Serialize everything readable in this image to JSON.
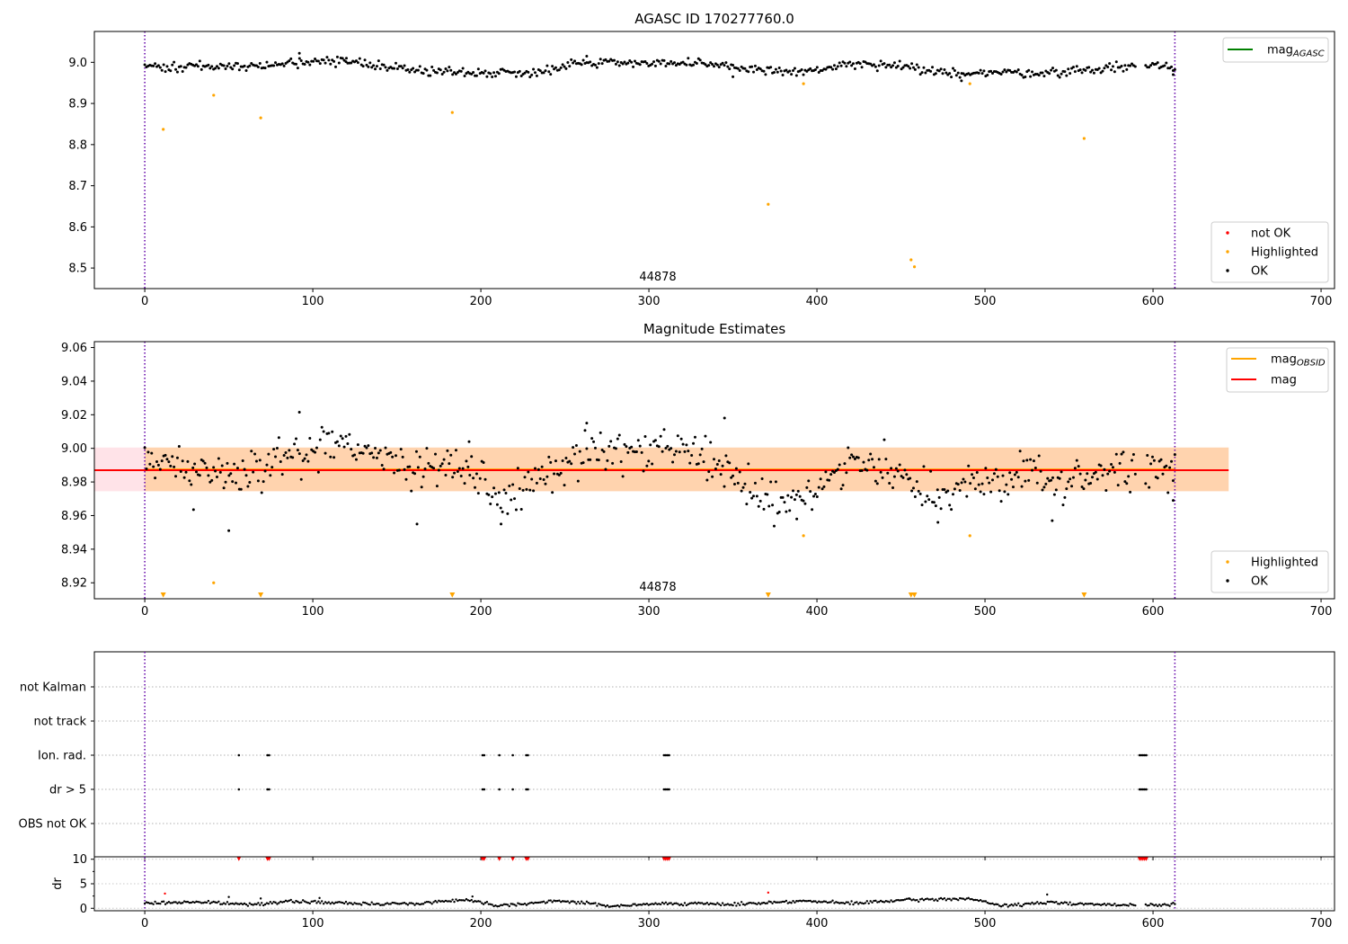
{
  "chart_data": [
    {
      "type": "scatter",
      "title": "AGASC ID 170277760.0",
      "xlabel": "",
      "ylabel": "",
      "xlim": [
        -30,
        708
      ],
      "ylim": [
        8.45,
        9.075
      ],
      "xticks": [
        0,
        100,
        200,
        300,
        400,
        500,
        600,
        700
      ],
      "yticks": [
        8.5,
        8.6,
        8.7,
        8.8,
        8.9,
        9.0
      ],
      "vlines": [
        0,
        613
      ],
      "annotation": {
        "text": "44878",
        "x": 305,
        "y": 8.47
      },
      "series": [
        {
          "name": "mag_AGASC",
          "kind": "line",
          "color": "#008000"
        },
        {
          "name": "not OK",
          "kind": "points",
          "color": "#ff0000",
          "x": [],
          "y": []
        },
        {
          "name": "Highlighted",
          "kind": "points",
          "color": "#ffa500",
          "x": [
            11,
            41,
            69,
            183,
            371,
            392,
            456,
            458,
            491,
            559
          ],
          "y": [
            8.837,
            8.92,
            8.865,
            8.878,
            8.655,
            8.948,
            8.52,
            8.503,
            8.948,
            8.815
          ]
        },
        {
          "name": "OK",
          "kind": "points",
          "color": "#000000",
          "trend": [
            [
              0,
              8.99
            ],
            [
              30,
              8.99
            ],
            [
              60,
              8.99
            ],
            [
              100,
              9.0
            ],
            [
              130,
              9.0
            ],
            [
              160,
              8.98
            ],
            [
              200,
              8.975
            ],
            [
              230,
              8.975
            ],
            [
              260,
              9.0
            ],
            [
              300,
              9.0
            ],
            [
              330,
              8.995
            ],
            [
              360,
              8.985
            ],
            [
              390,
              8.975
            ],
            [
              420,
              8.995
            ],
            [
              450,
              8.99
            ],
            [
              470,
              8.975
            ],
            [
              500,
              8.975
            ],
            [
              540,
              8.975
            ],
            [
              570,
              8.985
            ],
            [
              600,
              8.995
            ],
            [
              613,
              8.985
            ]
          ],
          "spread": 0.011,
          "count": 600,
          "gaps": [
            [
              590,
              595
            ]
          ],
          "outliers": [
            [
              92,
              9.022
            ],
            [
              120,
              9.01
            ],
            [
              263,
              9.015
            ],
            [
              350,
              8.965
            ],
            [
              486,
              8.955
            ],
            [
              612,
              8.97
            ]
          ]
        }
      ],
      "legends": [
        {
          "position": "top-right",
          "entries": [
            {
              "label": "mag",
              "sub": "AGASC",
              "color": "#008000",
              "kind": "line"
            }
          ]
        },
        {
          "position": "bottom-right",
          "entries": [
            {
              "label": "not OK",
              "color": "#ff0000",
              "kind": "point"
            },
            {
              "label": "Highlighted",
              "color": "#ffa500",
              "kind": "point"
            },
            {
              "label": "OK",
              "color": "#000000",
              "kind": "point"
            }
          ]
        }
      ]
    },
    {
      "type": "scatter",
      "title": "Magnitude Estimates",
      "xlabel": "",
      "ylabel": "",
      "xlim": [
        -30,
        708
      ],
      "ylim": [
        8.9105,
        9.0635
      ],
      "xticks": [
        0,
        100,
        200,
        300,
        400,
        500,
        600,
        700
      ],
      "yticks": [
        8.92,
        8.94,
        8.96,
        8.98,
        9.0,
        9.02,
        9.04,
        9.06
      ],
      "vlines": [
        0,
        613
      ],
      "bands": [
        {
          "x": [
            -30,
            645
          ],
          "y": [
            8.9745,
            9.0005
          ],
          "color": "#ffc0cb",
          "opacity": 0.45
        },
        {
          "x": [
            0,
            645
          ],
          "y": [
            8.9745,
            9.0005
          ],
          "color": "#ffa500",
          "opacity": 0.25
        }
      ],
      "lines": [
        {
          "name": "mag_OBSID",
          "y": 8.9875,
          "x": [
            0,
            613
          ],
          "color": "#ffa500"
        },
        {
          "name": "mag",
          "y": 8.987,
          "x": [
            -30,
            645
          ],
          "color": "#ff0000"
        }
      ],
      "annotation": {
        "text": "44878",
        "x": 305,
        "y": 8.9155
      },
      "series": [
        {
          "name": "Highlighted",
          "kind": "points",
          "color": "#ffa500",
          "x": [
            41,
            392,
            491
          ],
          "y": [
            8.92,
            8.948,
            8.948
          ]
        },
        {
          "name": "Highlighted (below range)",
          "kind": "triangles",
          "color": "#ffa500",
          "x": [
            11,
            69,
            183,
            371,
            456,
            458,
            559
          ]
        },
        {
          "name": "OK",
          "kind": "points",
          "color": "#000000",
          "trend": [
            [
              0,
              8.992
            ],
            [
              20,
              8.99
            ],
            [
              40,
              8.985
            ],
            [
              60,
              8.985
            ],
            [
              80,
              8.992
            ],
            [
              100,
              9.0
            ],
            [
              120,
              9.0
            ],
            [
              140,
              8.995
            ],
            [
              160,
              8.985
            ],
            [
              180,
              8.99
            ],
            [
              200,
              8.98
            ],
            [
              215,
              8.968
            ],
            [
              230,
              8.98
            ],
            [
              250,
              8.99
            ],
            [
              270,
              9.0
            ],
            [
              300,
              8.998
            ],
            [
              320,
              9.0
            ],
            [
              340,
              8.99
            ],
            [
              360,
              8.975
            ],
            [
              380,
              8.968
            ],
            [
              400,
              8.975
            ],
            [
              420,
              8.995
            ],
            [
              440,
              8.99
            ],
            [
              460,
              8.975
            ],
            [
              470,
              8.97
            ],
            [
              490,
              8.98
            ],
            [
              510,
              8.978
            ],
            [
              530,
              8.985
            ],
            [
              545,
              8.975
            ],
            [
              560,
              8.985
            ],
            [
              580,
              8.99
            ],
            [
              600,
              8.99
            ],
            [
              613,
              8.985
            ]
          ],
          "spread": 0.012,
          "count": 600,
          "gaps": [
            [
              590,
              595
            ]
          ],
          "outliers": [
            [
              29,
              8.9635
            ],
            [
              50,
              8.951
            ],
            [
              92,
              9.0215
            ],
            [
              162,
              8.955
            ],
            [
              193,
              9.004
            ],
            [
              212,
              8.955
            ],
            [
              263,
              9.015
            ],
            [
              345,
              9.018
            ],
            [
              388,
              8.958
            ],
            [
              472,
              8.956
            ],
            [
              540,
              8.957
            ],
            [
              612,
              8.969
            ]
          ]
        }
      ],
      "legends": [
        {
          "position": "top-right",
          "entries": [
            {
              "label": "mag",
              "sub": "OBSID",
              "color": "#ffa500",
              "kind": "line"
            },
            {
              "label": "mag",
              "color": "#ff0000",
              "kind": "line"
            }
          ]
        },
        {
          "position": "bottom-right",
          "entries": [
            {
              "label": "Highlighted",
              "color": "#ffa500",
              "kind": "point"
            },
            {
              "label": "OK",
              "color": "#000000",
              "kind": "point"
            }
          ]
        }
      ]
    },
    {
      "type": "scatter",
      "title": "",
      "xlabel": "",
      "ylabel": "",
      "xlim": [
        -30,
        708
      ],
      "categories": [
        "not Kalman",
        "not track",
        "Ion. rad.",
        "dr > 5",
        "OBS not OK"
      ],
      "vlines": [
        0,
        613
      ],
      "flags": [
        {
          "category": "Ion. rad.",
          "x": [
            56,
            73,
            74,
            201,
            202,
            211,
            219,
            227,
            228,
            309,
            310,
            311,
            312,
            592,
            593,
            594,
            595,
            596
          ]
        },
        {
          "category": "dr > 5",
          "x": [
            56,
            73,
            74,
            201,
            202,
            211,
            219,
            227,
            228,
            309,
            310,
            311,
            312,
            592,
            593,
            594,
            595,
            596
          ]
        }
      ]
    },
    {
      "type": "scatter",
      "title": "",
      "xlabel": "",
      "ylabel": "dr",
      "xlim": [
        -30,
        708
      ],
      "ylim": [
        -0.5,
        10.5
      ],
      "xticks": [
        0,
        100,
        200,
        300,
        400,
        500,
        600,
        700
      ],
      "yticks": [
        0,
        5,
        10
      ],
      "vlines": [
        0,
        613
      ],
      "series": [
        {
          "name": "not OK",
          "kind": "triangles",
          "color": "#ff0000",
          "x": [
            56,
            73,
            74,
            201,
            202,
            211,
            219,
            227,
            228,
            309,
            310,
            311,
            312,
            592,
            593,
            594,
            595,
            596
          ],
          "y": 10
        },
        {
          "name": "not OK (dr)",
          "kind": "points",
          "color": "#ff0000",
          "x": [
            12,
            371
          ],
          "y": [
            3.0,
            3.2
          ]
        },
        {
          "name": "OK",
          "kind": "points",
          "color": "#000000",
          "trend": [
            [
              0,
              1.0
            ],
            [
              30,
              1.3
            ],
            [
              60,
              0.8
            ],
            [
              90,
              1.4
            ],
            [
              120,
              1.0
            ],
            [
              160,
              0.9
            ],
            [
              190,
              1.8
            ],
            [
              210,
              0.6
            ],
            [
              250,
              1.5
            ],
            [
              280,
              0.4
            ],
            [
              310,
              1.0
            ],
            [
              350,
              0.8
            ],
            [
              390,
              1.5
            ],
            [
              420,
              1.0
            ],
            [
              450,
              1.6
            ],
            [
              490,
              2.0
            ],
            [
              510,
              0.5
            ],
            [
              540,
              1.2
            ],
            [
              580,
              0.6
            ],
            [
              613,
              0.8
            ]
          ],
          "spread": 0.3,
          "count": 600,
          "gaps": [
            [
              590,
              595
            ]
          ],
          "outliers": [
            [
              50,
              2.3
            ],
            [
              69,
              2.0
            ],
            [
              104,
              2.1
            ],
            [
              195,
              2.4
            ],
            [
              455,
              2.0
            ],
            [
              537,
              2.8
            ]
          ]
        }
      ]
    }
  ]
}
